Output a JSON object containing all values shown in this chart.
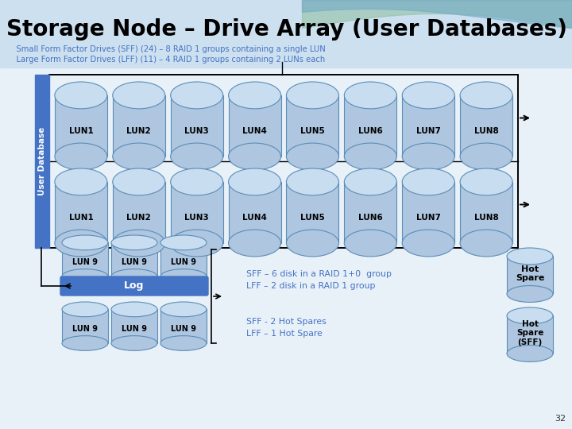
{
  "title": "Storage Node – Drive Array (User Databases)",
  "subtitle_line1": "    Small Form Factor Drives (SFF) (24) – 8 RAID 1 groups containing a single LUN",
  "subtitle_line2": "    Large Form Factor Drives (LFF) (11) – 4 RAID 1 groups containing 2 LUNs each",
  "title_color": "#000000",
  "subtitle_color": "#4472c4",
  "cylinder_fill": "#aec6e0",
  "cylinder_top_fill": "#c8ddf0",
  "cylinder_outline": "#5b8db8",
  "log_fill": "#4472c4",
  "log_text_color": "#ffffff",
  "user_db_fill": "#4472c4",
  "user_db_text_color": "#ffffff",
  "lun_row1": [
    "LUN1",
    "LUN2",
    "LUN3",
    "LUN4",
    "LUN5",
    "LUN6",
    "LUN7",
    "LUN8"
  ],
  "lun_row2": [
    "LUN1",
    "LUN2",
    "LUN3",
    "LUN4",
    "LUN5",
    "LUN6",
    "LUN7",
    "LUN8"
  ],
  "lun_row3": [
    "LUN 9",
    "LUN 9",
    "LUN 9"
  ],
  "lun_row4": [
    "LUN 9",
    "LUN 9",
    "LUN 9"
  ],
  "text_sff_lff": "SFF – 6 disk in a RAID 1+0  group\nLFF – 2 disk in a RAID 1 group",
  "text_spares": "SFF - 2 Hot Spares\nLFF – 1 Hot Spare",
  "hot_spare1_label": "Hot\nSpare",
  "hot_spare2_label": "Hot\nSpare\n(SFF)",
  "page_num": "32",
  "annotation_color": "#4472c4",
  "bg_color": "#dce8f5",
  "wave_green": "#8dbfa0",
  "wave_blue": "#6fa8c8"
}
